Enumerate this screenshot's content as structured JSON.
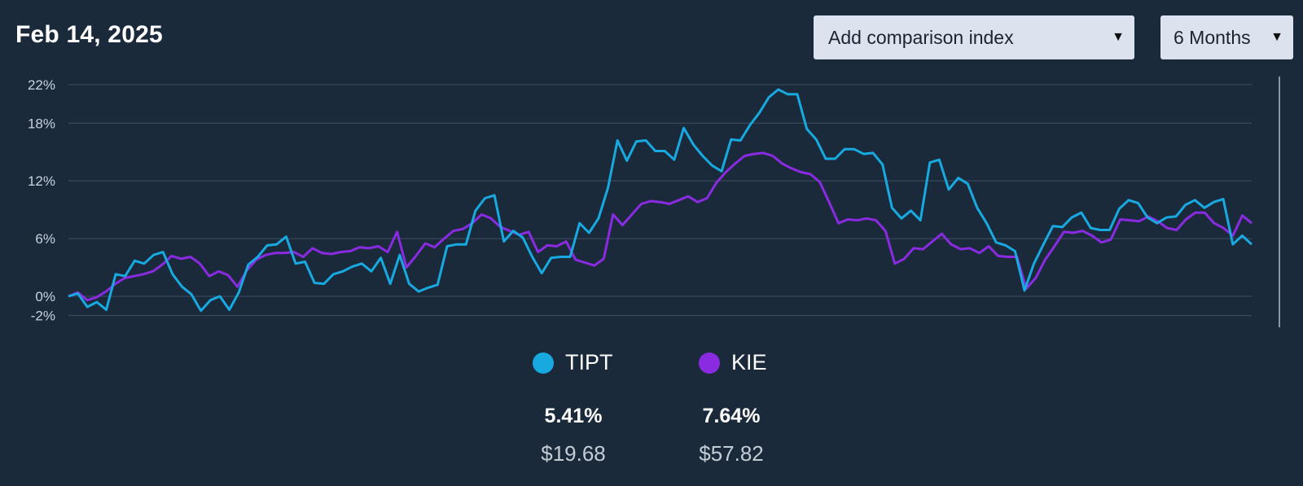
{
  "header": {
    "date": "Feb 14, 2025",
    "comparison_select": "Add comparison index",
    "range_select": "6 Months"
  },
  "icons": {
    "dropdown": "caret-down-icon"
  },
  "colors": {
    "background": "#1b2a3b",
    "tipt": "#17a9e0",
    "kie": "#8a2be2"
  },
  "legend": [
    {
      "symbol": "TIPT",
      "color": "#17a9e0",
      "change": "5.41%",
      "price": "$19.68"
    },
    {
      "symbol": "KIE",
      "color": "#8a2be2",
      "change": "7.64%",
      "price": "$57.82"
    }
  ],
  "chart_data": {
    "type": "line",
    "y_tick_labels": [
      "22%",
      "18%",
      "12%",
      "6%",
      "0%",
      "-2%"
    ],
    "y_ticks": [
      22,
      18,
      12,
      6,
      0,
      -2
    ],
    "ylim": [
      -3,
      23
    ],
    "grid": true,
    "legend_position": "bottom-center",
    "series": [
      {
        "name": "TIPT",
        "color": "#17a9e0",
        "values": [
          0,
          0.3,
          -1.1,
          -0.6,
          -1.4,
          2.3,
          2.1,
          3.7,
          3.4,
          4.3,
          4.6,
          2.3,
          1,
          0.2,
          -1.5,
          -0.4,
          0,
          -1.4,
          0.4,
          3.3,
          4.1,
          5.3,
          5.4,
          6.2,
          3.4,
          3.6,
          1.4,
          1.3,
          2.3,
          2.6,
          3.1,
          3.4,
          2.6,
          4,
          1.3,
          4.3,
          1.3,
          0.5,
          0.9,
          1.2,
          5.2,
          5.4,
          5.4,
          8.9,
          10.2,
          10.5,
          5.7,
          6.8,
          6.1,
          4.1,
          2.4,
          4,
          4.1,
          4.1,
          7.6,
          6.6,
          8.1,
          11.3,
          16.2,
          14.1,
          16.1,
          16.2,
          15.1,
          15.1,
          14.2,
          17.5,
          15.8,
          14.6,
          13.6,
          13,
          16.3,
          16.2,
          17.8,
          19.1,
          20.7,
          21.5,
          21,
          21,
          17.4,
          16.3,
          14.3,
          14.3,
          15.3,
          15.3,
          14.8,
          14.9,
          13.7,
          9.2,
          8.1,
          8.9,
          7.9,
          13.9,
          14.2,
          11.1,
          12.3,
          11.7,
          9.2,
          7.6,
          5.6,
          5.3,
          4.7,
          0.6,
          3.4,
          5.4,
          7.3,
          7.2,
          8.2,
          8.7,
          7.1,
          6.9,
          6.9,
          9.1,
          10,
          9.7,
          8.2,
          7.6,
          8.2,
          8.3,
          9.5,
          10,
          9.2,
          9.8,
          10.1,
          5.4,
          6.3,
          5.4
        ]
      },
      {
        "name": "KIE",
        "color": "#8a2be2",
        "values": [
          0,
          0.4,
          -0.4,
          -0.1,
          0.5,
          1.3,
          1.9,
          2.1,
          2.3,
          2.6,
          3.3,
          4.2,
          3.9,
          4.1,
          3.4,
          2.1,
          2.6,
          2.2,
          1,
          2.7,
          3.8,
          4.3,
          4.5,
          4.5,
          4.6,
          4.1,
          5,
          4.5,
          4.4,
          4.6,
          4.7,
          5.1,
          5,
          5.2,
          4.6,
          6.7,
          3,
          4.2,
          5.5,
          5.1,
          6,
          6.8,
          7,
          7.6,
          8.5,
          8.1,
          7.2,
          6.8,
          6.4,
          6.7,
          4.6,
          5.3,
          5.2,
          5.7,
          3.8,
          3.5,
          3.2,
          3.9,
          8.5,
          7.4,
          8.5,
          9.6,
          9.9,
          9.8,
          9.6,
          10,
          10.4,
          9.8,
          10.2,
          11.8,
          12.9,
          13.8,
          14.6,
          14.8,
          14.9,
          14.6,
          13.8,
          13.3,
          12.9,
          12.7,
          11.9,
          9.8,
          7.6,
          8,
          7.9,
          8.1,
          7.9,
          6.8,
          3.4,
          3.9,
          5,
          4.9,
          5.7,
          6.5,
          5.4,
          4.9,
          5,
          4.5,
          5.2,
          4.2,
          4.1,
          4.1,
          0.8,
          1.9,
          3.8,
          5.2,
          6.7,
          6.6,
          6.8,
          6.3,
          5.6,
          5.9,
          8,
          7.9,
          7.8,
          8.3,
          7.8,
          7.1,
          6.9,
          8,
          8.7,
          8.7,
          7.6,
          7.1,
          6.3,
          8.4,
          7.6
        ]
      }
    ]
  }
}
